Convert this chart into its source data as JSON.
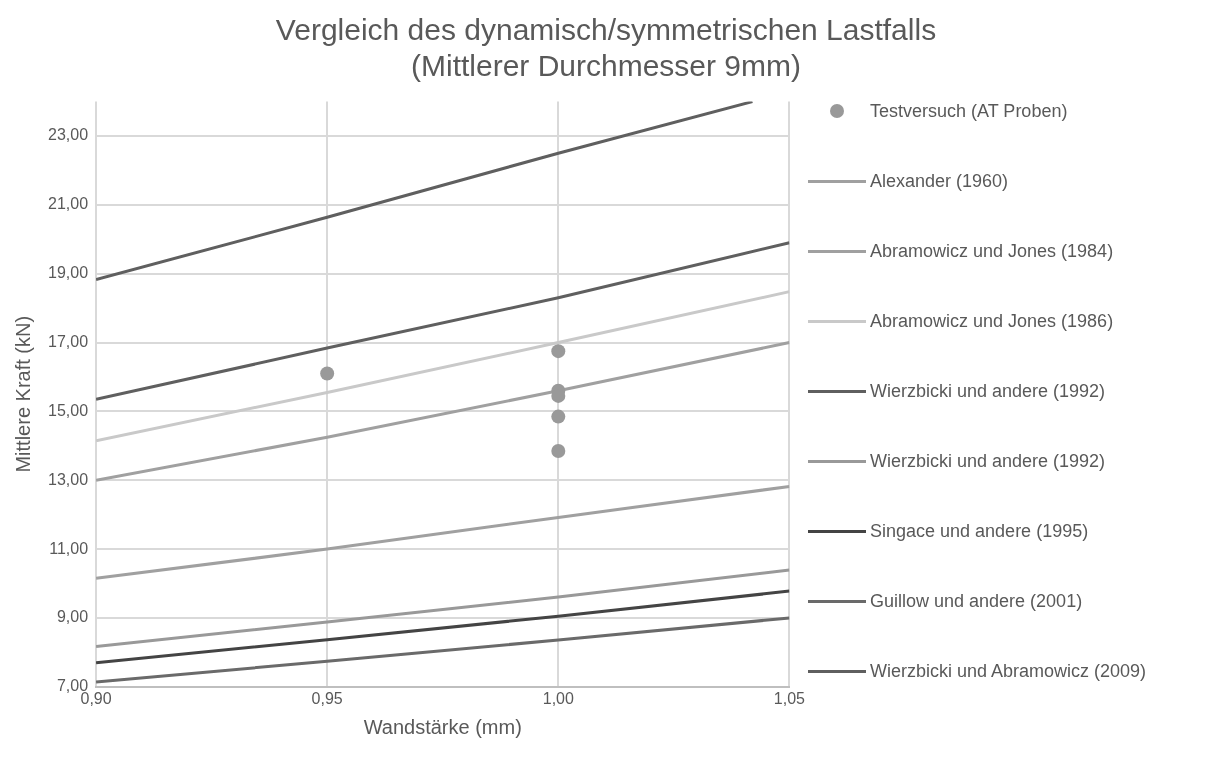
{
  "chart_data": {
    "type": "line",
    "title": "Vergleich des dynamisch/symmetrischen Lastfalls\n(Mittlerer Durchmesser 9mm)",
    "xlabel": "Wandstärke (mm)",
    "ylabel": "Mittlere Kraft (kN)",
    "xlim": [
      0.9,
      1.05
    ],
    "xticks": [
      {
        "value": 0.9,
        "label": "0,90"
      },
      {
        "value": 0.95,
        "label": "0,95"
      },
      {
        "value": 1.0,
        "label": "1,00"
      },
      {
        "value": 1.05,
        "label": "1,05"
      }
    ],
    "ylim": [
      7,
      24
    ],
    "yticks": [
      {
        "value": 7,
        "label": "7,00"
      },
      {
        "value": 9,
        "label": "9,00"
      },
      {
        "value": 11,
        "label": "11,00"
      },
      {
        "value": 13,
        "label": "13,00"
      },
      {
        "value": 15,
        "label": "15,00"
      },
      {
        "value": 17,
        "label": "17,00"
      },
      {
        "value": 19,
        "label": "19,00"
      },
      {
        "value": 21,
        "label": "21,00"
      },
      {
        "value": 23,
        "label": "23,00"
      }
    ],
    "grid": true,
    "legend": "right",
    "marker": "none",
    "line_style": "solid",
    "series": [
      {
        "name": "Testversuch (AT Proben)",
        "type": "scatter",
        "marker": "circle",
        "color": "#999999",
        "x": [
          0.95,
          1.0,
          1.0,
          1.0,
          1.0,
          1.0
        ],
        "values": [
          16.1,
          16.75,
          15.6,
          15.45,
          14.85,
          13.85
        ]
      },
      {
        "name": "Alexander (1960)",
        "color": "#a0a0a0",
        "x": [
          0.9,
          0.95,
          1.0,
          1.05
        ],
        "values": [
          10.15,
          11.0,
          11.92,
          12.82
        ]
      },
      {
        "name": "Abramowicz und Jones (1984)",
        "color": "#a0a0a0",
        "x": [
          0.9,
          0.95,
          1.0,
          1.05
        ],
        "values": [
          13.0,
          14.25,
          15.6,
          17.0
        ]
      },
      {
        "name": "Abramowicz und Jones (1986)",
        "color": "#c9c9c9",
        "x": [
          0.9,
          0.95,
          1.0,
          1.05
        ],
        "values": [
          14.15,
          15.55,
          17.0,
          18.48
        ]
      },
      {
        "name": "Wierzbicki und andere (1992)",
        "color": "#5f5f5f",
        "x": [
          0.9,
          0.95,
          1.0,
          1.05
        ],
        "values": [
          15.35,
          16.84,
          18.3,
          19.9
        ]
      },
      {
        "name": "Wierzbicki und andere (1992)",
        "color": "#999999",
        "x": [
          0.9,
          0.95,
          1.0,
          1.05
        ],
        "values": [
          8.17,
          8.88,
          9.61,
          10.39
        ]
      },
      {
        "name": "Singace und andere (1995)",
        "color": "#444444",
        "x": [
          0.9,
          0.95,
          1.0,
          1.05
        ],
        "values": [
          7.7,
          8.37,
          9.05,
          9.78
        ]
      },
      {
        "name": "Guillow und andere (2001)",
        "color": "#6a6a6a",
        "x": [
          0.9,
          0.95,
          1.0,
          1.05
        ],
        "values": [
          7.14,
          7.74,
          8.36,
          9.0
        ]
      },
      {
        "name": "Wierzbicki und Abramowicz (2009)",
        "color": "#5f5f5f",
        "x": [
          0.9,
          0.95,
          1.0,
          1.042
        ],
        "values": [
          18.83,
          20.64,
          22.5,
          24.0
        ]
      }
    ]
  }
}
